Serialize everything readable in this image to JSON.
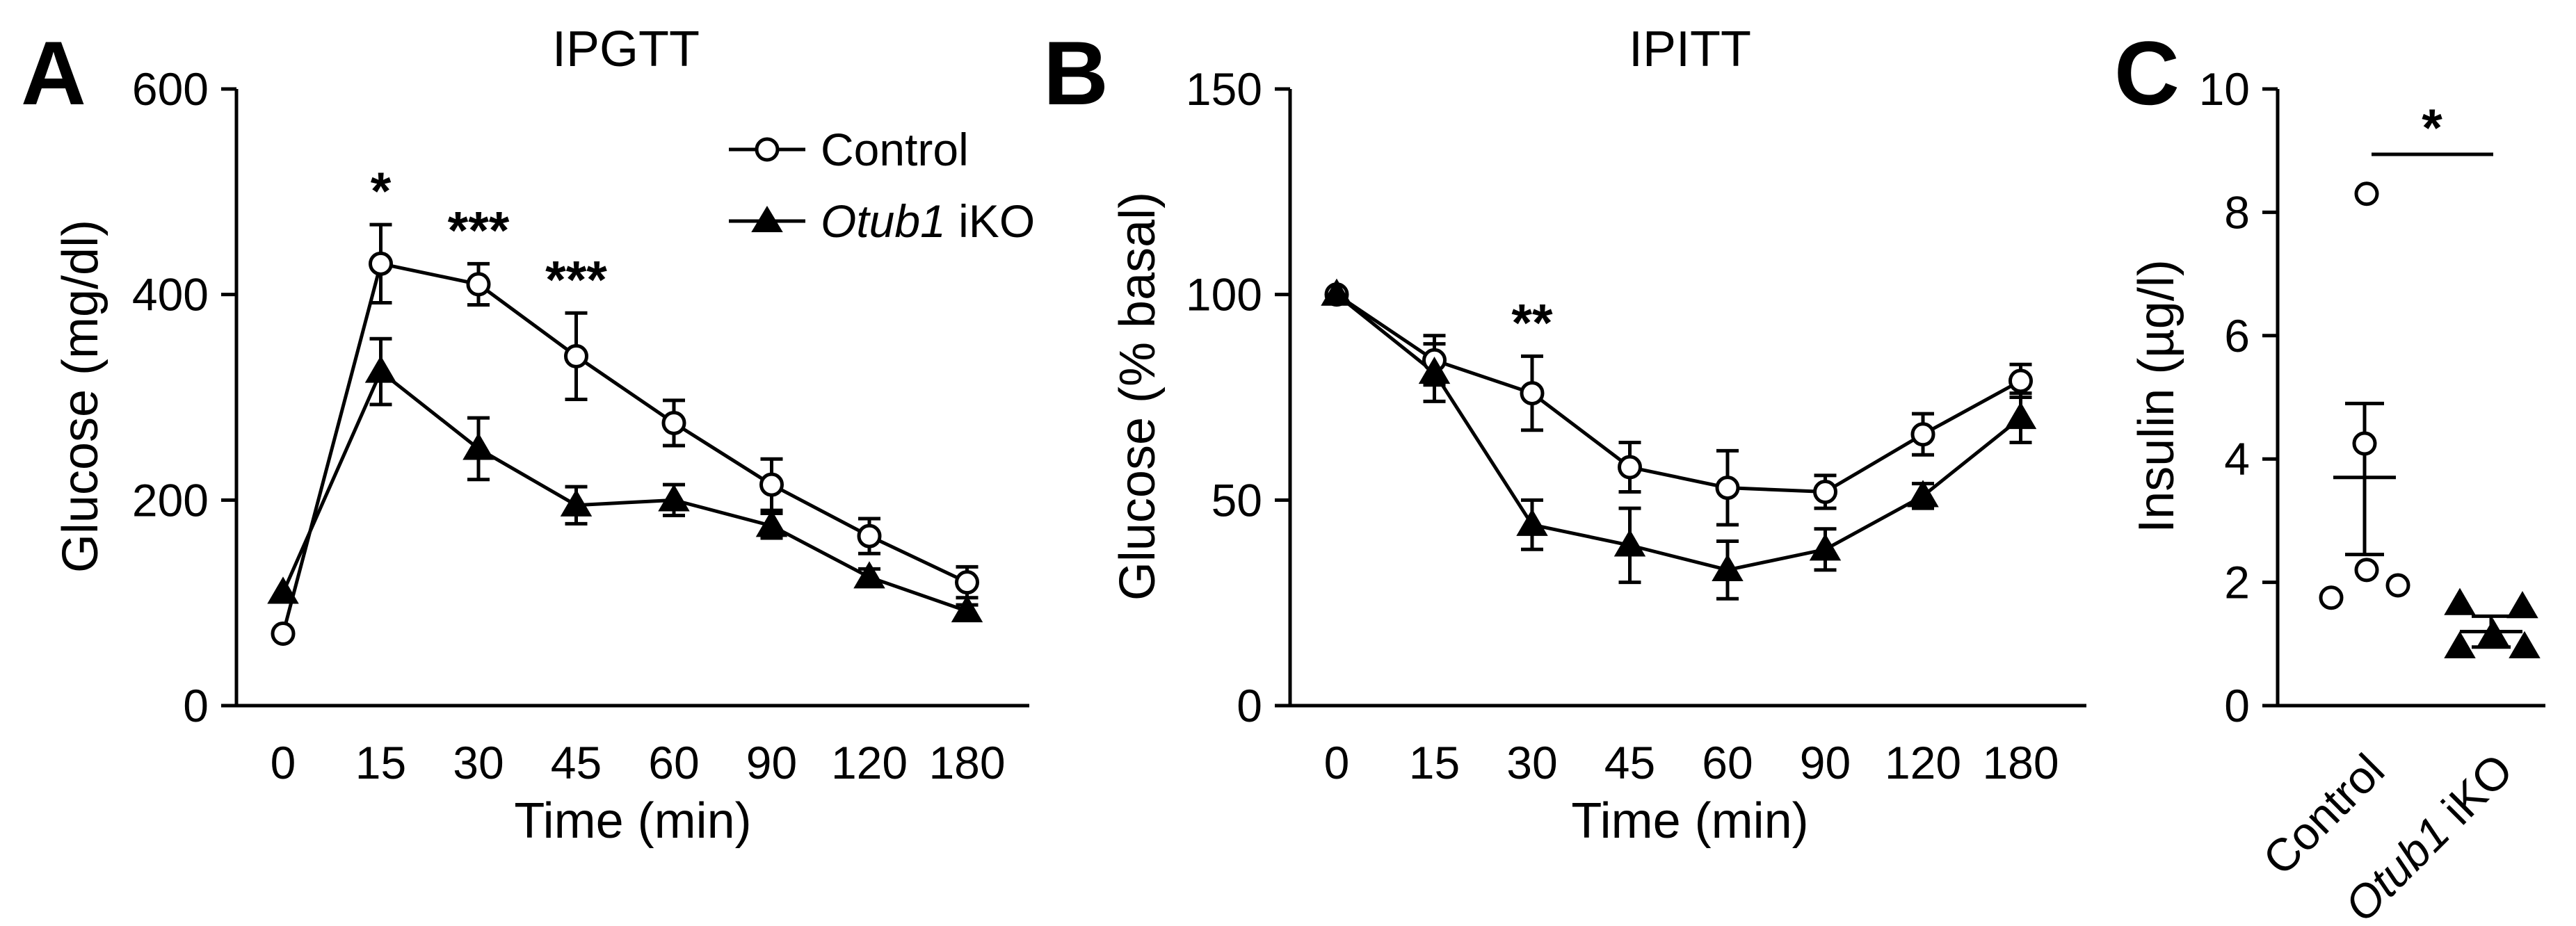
{
  "chart_data": [
    {
      "type": "line",
      "panel": "A",
      "title": "IPGTT",
      "xlabel": "Time (min)",
      "ylabel": "Glucose (mg/dl)",
      "categories": [
        "0",
        "15",
        "30",
        "45",
        "60",
        "90",
        "120",
        "180"
      ],
      "ylim": [
        0,
        600
      ],
      "yticks": [
        0,
        200,
        400,
        600
      ],
      "series": [
        {
          "name": "Control",
          "marker": "open-circle",
          "values": [
            70,
            430,
            410,
            340,
            275,
            215,
            165,
            120
          ],
          "errors": [
            0,
            38,
            20,
            42,
            22,
            25,
            17,
            15
          ]
        },
        {
          "name_prefix": "Otub1",
          "name_suffix": " iKO",
          "marker": "filled-triangle",
          "values": [
            110,
            325,
            250,
            195,
            200,
            175,
            125,
            92
          ],
          "errors": [
            0,
            32,
            30,
            18,
            15,
            12,
            8,
            6
          ]
        }
      ],
      "significance": [
        {
          "category": "15",
          "label": "*"
        },
        {
          "category": "30",
          "label": "***"
        },
        {
          "category": "45",
          "label": "***"
        }
      ],
      "legend": {
        "position": "top-right"
      }
    },
    {
      "type": "line",
      "panel": "B",
      "title": "IPITT",
      "xlabel": "Time (min)",
      "ylabel": "Glucose (% basal)",
      "categories": [
        "0",
        "15",
        "30",
        "45",
        "60",
        "90",
        "120",
        "180"
      ],
      "ylim": [
        0,
        150
      ],
      "yticks": [
        0,
        50,
        100,
        150
      ],
      "series": [
        {
          "name": "Control",
          "marker": "open-circle",
          "values": [
            100,
            84,
            76,
            58,
            53,
            52,
            66,
            79
          ],
          "errors": [
            0,
            6,
            9,
            6,
            9,
            4,
            5,
            4
          ]
        },
        {
          "name_prefix": "Otub1",
          "name_suffix": " iKO",
          "marker": "filled-triangle",
          "values": [
            100,
            81,
            44,
            39,
            33,
            38,
            51,
            70
          ],
          "errors": [
            0,
            7,
            6,
            9,
            7,
            5,
            3,
            6
          ]
        }
      ],
      "significance": [
        {
          "category": "30",
          "label": "**"
        }
      ]
    },
    {
      "type": "scatter",
      "panel": "C",
      "ylabel": "Insulin (µg/l)",
      "ylim": [
        0,
        10
      ],
      "yticks": [
        0,
        2,
        4,
        6,
        8,
        10
      ],
      "groups": [
        {
          "label": "Control",
          "marker": "open-circle",
          "points": [
            8.3,
            4.25,
            2.2,
            1.95,
            1.75
          ],
          "mean": 3.7,
          "sem_upper": 4.9,
          "sem_lower": 2.45
        },
        {
          "label_prefix": "Otub1",
          "label_suffix": " iKO",
          "marker": "filled-triangle",
          "points": [
            1.65,
            1.6,
            1.15,
            0.95,
            0.95
          ],
          "mean": 1.2,
          "sem_upper": 1.45,
          "sem_lower": 0.95
        }
      ],
      "significance": {
        "label": "*"
      }
    }
  ]
}
